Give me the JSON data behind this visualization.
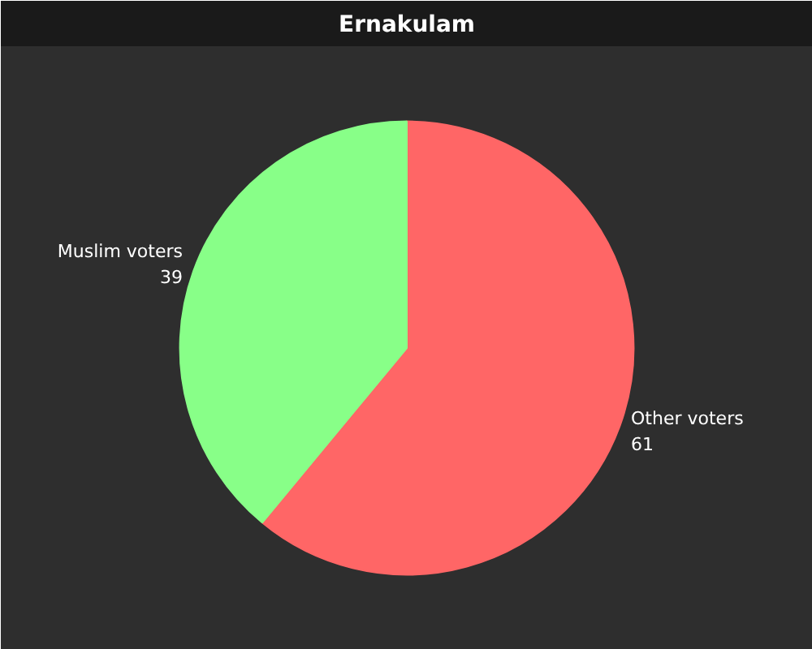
{
  "chart_data": {
    "type": "pie",
    "title": "Ernakulam",
    "categories": [
      "Other voters",
      "Muslim voters"
    ],
    "values": [
      61,
      39
    ],
    "colors": [
      "#ff6666",
      "#88ff88"
    ],
    "data_labels": true
  }
}
